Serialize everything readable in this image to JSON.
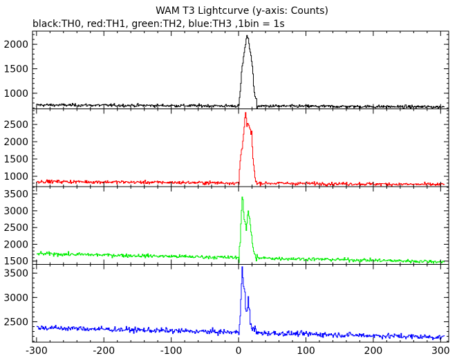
{
  "title": "WAM T3 Lightcurve (y-axis: Counts)",
  "subtitle": "black:TH0, red:TH1, green:TH2, blue:TH3 ,1bin = 1s",
  "chart_data": {
    "type": "line",
    "title": "WAM T3 Lightcurve (y-axis: Counts)",
    "subtitle": "black:TH0, red:TH1, green:TH2, blue:TH3 ,1bin = 1s",
    "xlabel": "",
    "ylabel": "",
    "xlim": [
      -306,
      312
    ],
    "x_ticks": [
      -300,
      -200,
      -100,
      0,
      100,
      200,
      300
    ],
    "grid": false,
    "panels": [
      {
        "name": "TH0",
        "color": "#000000",
        "ylim": [
          680,
          2270
        ],
        "y_ticks": [
          1000,
          1500,
          2000
        ],
        "baseline_start": 760,
        "baseline_end": 720,
        "noise": 25,
        "burst": [
          [
            0,
            740
          ],
          [
            3,
            1200
          ],
          [
            6,
            1650
          ],
          [
            9,
            1950
          ],
          [
            12,
            2200
          ],
          [
            15,
            2050
          ],
          [
            18,
            1800
          ],
          [
            21,
            1350
          ],
          [
            24,
            900
          ],
          [
            27,
            740
          ]
        ]
      },
      {
        "name": "TH1",
        "color": "#ff0000",
        "ylim": [
          700,
          2950
        ],
        "y_ticks": [
          1000,
          1500,
          2000,
          2500
        ],
        "baseline_start": 850,
        "baseline_end": 760,
        "noise": 40,
        "burst": [
          [
            0,
            800
          ],
          [
            2,
            1500
          ],
          [
            4,
            1800
          ],
          [
            7,
            2200
          ],
          [
            10,
            2750
          ],
          [
            13,
            2500
          ],
          [
            16,
            2400
          ],
          [
            19,
            2200
          ],
          [
            22,
            1300
          ],
          [
            25,
            840
          ],
          [
            28,
            800
          ]
        ]
      },
      {
        "name": "TH2",
        "color": "#00ee00",
        "ylim": [
          1400,
          3720
        ],
        "y_ticks": [
          1500,
          2000,
          2500,
          3000,
          3500
        ],
        "baseline_start": 1720,
        "baseline_end": 1480,
        "noise": 45,
        "burst": [
          [
            0,
            1600
          ],
          [
            2,
            2200
          ],
          [
            5,
            3400
          ],
          [
            8,
            2800
          ],
          [
            11,
            2400
          ],
          [
            14,
            3050
          ],
          [
            17,
            2600
          ],
          [
            20,
            2000
          ],
          [
            24,
            1650
          ],
          [
            28,
            1600
          ]
        ]
      },
      {
        "name": "TH3",
        "color": "#0000ff",
        "ylim": [
          2080,
          3680
        ],
        "y_ticks": [
          2500,
          3000,
          3500
        ],
        "baseline_start": 2380,
        "baseline_end": 2180,
        "noise": 45,
        "burst": [
          [
            0,
            2300
          ],
          [
            2,
            2700
          ],
          [
            5,
            3550
          ],
          [
            8,
            3150
          ],
          [
            11,
            2700
          ],
          [
            14,
            2900
          ],
          [
            17,
            2500
          ],
          [
            21,
            2350
          ],
          [
            26,
            2300
          ]
        ]
      }
    ]
  }
}
